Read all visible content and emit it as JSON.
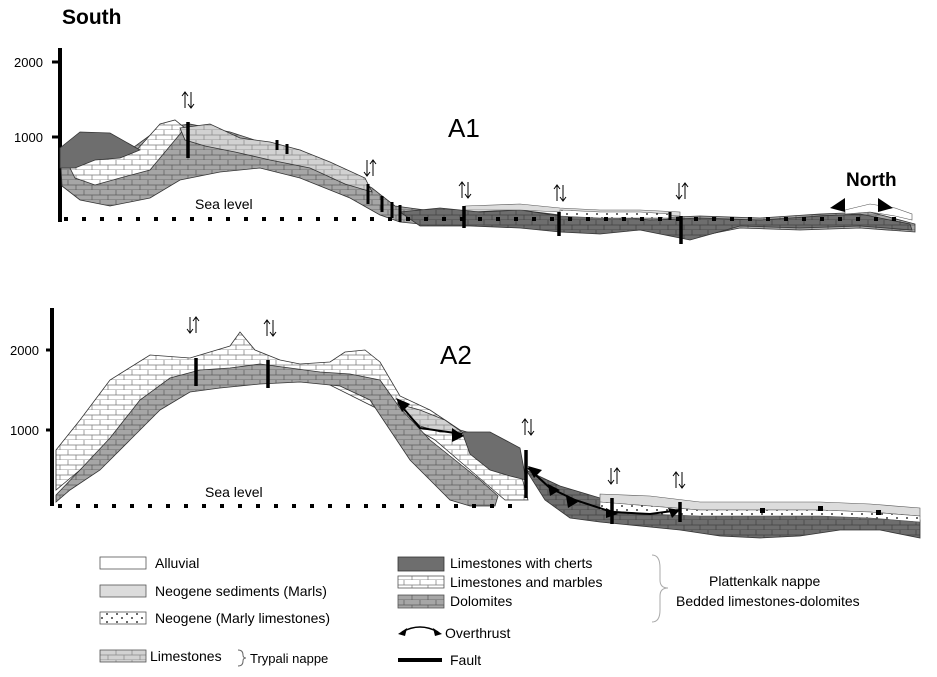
{
  "figure": {
    "direction_south": "South",
    "direction_north": "North",
    "section_a1": {
      "label": "A1",
      "sea_level": "Sea level",
      "y_ticks": [
        "2000",
        "1000"
      ]
    },
    "section_a2": {
      "label": "A2",
      "sea_level": "Sea level",
      "y_ticks": [
        "2000",
        "1000"
      ]
    }
  },
  "legend": {
    "alluvial": "Alluvial",
    "neogene_sediments": "Neogene sediments (Marls)",
    "neogene_marly": "Neogene (Marly limestones)",
    "limestones": "Limestones",
    "trypali_nappe": "Trypali nappe",
    "limestones_with_cherts": "Limestones with cherts",
    "limestones_and_marbles": "Limestones and marbles",
    "dolomites": "Dolomites",
    "overthrust": "Overthrust",
    "fault": "Fault",
    "plattenkalk_nappe": "Plattenkalk nappe",
    "bedded": "Bedded limestones-dolomites"
  },
  "colors": {
    "dolomite": "#a6a6a6",
    "chert_limestone": "#6e6e6e",
    "marble": "#ffffff",
    "neogene_marls": "#dcdcdc",
    "alluvial": "#ffffff"
  }
}
